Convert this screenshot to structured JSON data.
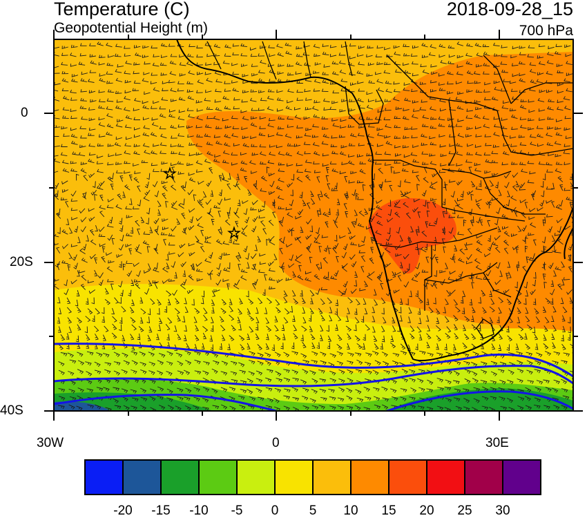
{
  "header": {
    "title": "Temperature (C)",
    "subtitle": "Geopotential Height (m)",
    "datetime": "2018-09-28_15",
    "level": "700 hPa"
  },
  "axes": {
    "lat_labels": [
      "0",
      "20S",
      "40S"
    ],
    "lon_labels": [
      "30W",
      "0",
      "30E"
    ],
    "lon_range": [
      -30,
      40
    ],
    "lat_range": [
      -40,
      10
    ]
  },
  "colorbar": {
    "labels": [
      "-20",
      "-15",
      "-10",
      "-5",
      "0",
      "5",
      "10",
      "15",
      "20",
      "25",
      "30"
    ],
    "colors": [
      "#0a1ef5",
      "#1d5699",
      "#1aa02a",
      "#5ccb13",
      "#c9ef0f",
      "#f8e300",
      "#fbbe0b",
      "#fe8a00",
      "#fb4e0c",
      "#f20f13",
      "#a10049",
      "#61008c"
    ]
  },
  "map": {
    "background_fill": "#fbbe0b",
    "contour_color": "#1414e6",
    "coastline_color": "#000000",
    "markers": [
      "star-icon",
      "star-icon"
    ]
  }
}
